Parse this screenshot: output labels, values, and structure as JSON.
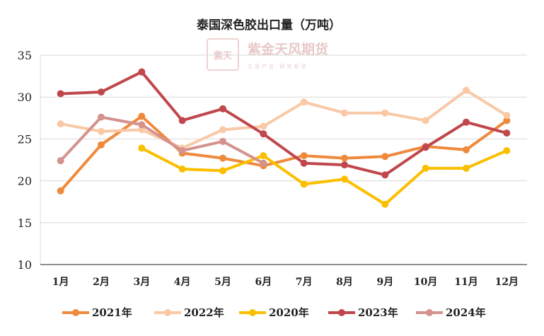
{
  "watermark": {
    "logo_text": "紫天金风",
    "brand": "紫金天风期货",
    "slogan": "立足产业 研究驱动"
  },
  "colors": {
    "grid": "#d9d9d9",
    "axis": "#222222"
  },
  "chart_data": {
    "type": "line",
    "title": "泰国深色胶出口量（万吨）",
    "xlabel": "",
    "ylabel": "",
    "categories": [
      "1月",
      "2月",
      "3月",
      "4月",
      "5月",
      "6月",
      "7月",
      "8月",
      "9月",
      "10月",
      "11月",
      "12月"
    ],
    "ylim": [
      10,
      35
    ],
    "yticks": [
      10,
      15,
      20,
      25,
      30,
      35
    ],
    "grid": true,
    "legend_position": "bottom",
    "series": [
      {
        "name": "2021年",
        "color": "#ef8a3c",
        "values": [
          18.8,
          24.3,
          27.7,
          23.3,
          22.7,
          21.8,
          23.0,
          22.7,
          22.9,
          24.1,
          23.7,
          27.2
        ]
      },
      {
        "name": "2022年",
        "color": "#f9c9a6",
        "values": [
          26.8,
          25.9,
          26.1,
          23.9,
          26.1,
          26.5,
          29.4,
          28.1,
          28.1,
          27.2,
          30.8,
          27.8
        ]
      },
      {
        "name": "2020年",
        "color": "#fbbf00",
        "values": [
          null,
          null,
          23.9,
          21.4,
          21.2,
          23.0,
          19.6,
          20.2,
          17.2,
          21.5,
          21.5,
          23.6
        ]
      },
      {
        "name": "2023年",
        "color": "#c0474b",
        "values": [
          30.4,
          30.6,
          33.0,
          27.2,
          28.6,
          25.6,
          22.1,
          21.9,
          20.7,
          24.0,
          27.0,
          25.7
        ]
      },
      {
        "name": "2024年",
        "color": "#d4928f",
        "values": [
          22.4,
          27.6,
          26.7,
          23.6,
          24.7,
          22.1,
          null,
          null,
          null,
          null,
          null,
          null
        ]
      }
    ]
  }
}
